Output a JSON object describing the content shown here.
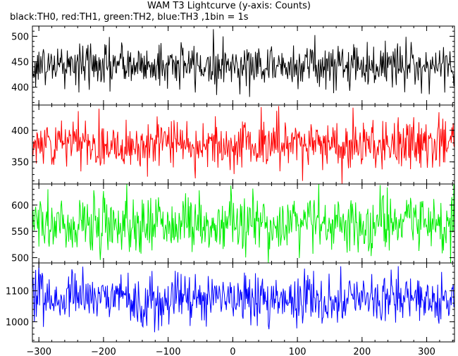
{
  "title": "WAM T3 Lightcurve (y-axis: Counts)",
  "subtitle": "black:TH0, red:TH1, green:TH2, blue:TH3 ,1bin = 1s",
  "chart_data": {
    "type": "line",
    "title": "WAM T3 Lightcurve (y-axis: Counts)",
    "subtitle": "black:TH0, red:TH1, green:TH2, blue:TH3 ,1bin = 1s",
    "xlim": [
      -310,
      343
    ],
    "x_ticks": [
      -300,
      -200,
      -100,
      0,
      100,
      200,
      300
    ],
    "bin_seconds": 1,
    "panels": [
      {
        "name": "TH0",
        "color": "#000000",
        "ylim": [
          365,
          520
        ],
        "y_ticks": [
          400,
          450,
          500
        ],
        "mean": 443,
        "sd": 22
      },
      {
        "name": "TH1",
        "color": "#ff0000",
        "ylim": [
          315,
          440
        ],
        "y_ticks": [
          350,
          400
        ],
        "mean": 378,
        "sd": 20
      },
      {
        "name": "TH2",
        "color": "#00ee00",
        "ylim": [
          490,
          640
        ],
        "y_ticks": [
          500,
          550,
          600
        ],
        "mean": 565,
        "sd": 28
      },
      {
        "name": "TH3",
        "color": "#0000ff",
        "ylim": [
          935,
          1190
        ],
        "y_ticks": [
          1000,
          1100
        ],
        "mean": 1075,
        "sd": 40
      }
    ]
  }
}
